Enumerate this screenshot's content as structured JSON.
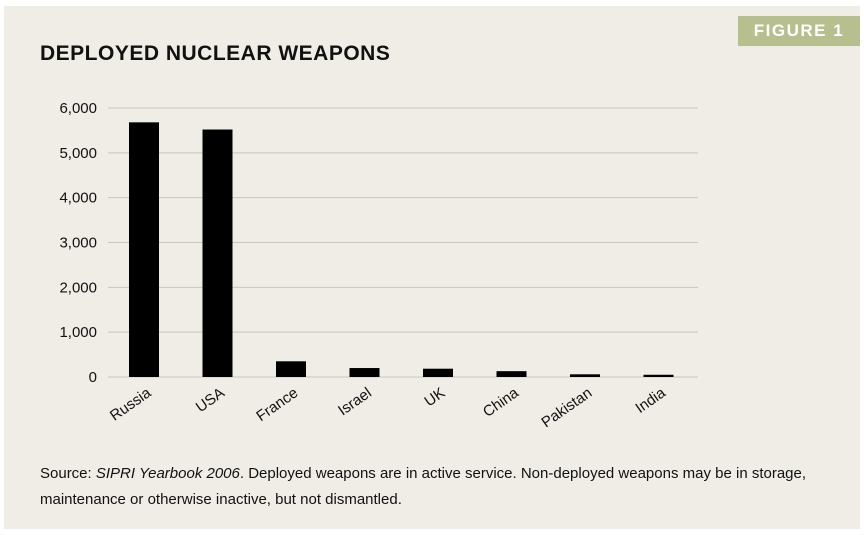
{
  "figure_label": "FIGURE 1",
  "chart_data": {
    "type": "bar",
    "title": "DEPLOYED NUCLEAR WEAPONS",
    "categories": [
      "Russia",
      "USA",
      "France",
      "Israel",
      "UK",
      "China",
      "Pakistan",
      "India"
    ],
    "values": [
      5680,
      5520,
      350,
      200,
      185,
      130,
      60,
      50
    ],
    "ylim": [
      0,
      6000
    ],
    "yticks": [
      0,
      1000,
      2000,
      3000,
      4000,
      5000,
      6000
    ],
    "ytick_labels": [
      "0",
      "1,000",
      "2,000",
      "3,000",
      "4,000",
      "5,000",
      "6,000"
    ],
    "grid": true,
    "bar_color": "#000000",
    "grid_color": "#c9c6bd"
  },
  "source": {
    "prefix": "Source: ",
    "publication": "SIPRI Yearbook 2006",
    "text": ". Deployed weapons are in active service. Non-deployed weapons may be in storage, maintenance or otherwise inactive, but not dismantled."
  },
  "colors": {
    "panel_background": "#efede6",
    "badge_background": "#b8bf8f"
  }
}
